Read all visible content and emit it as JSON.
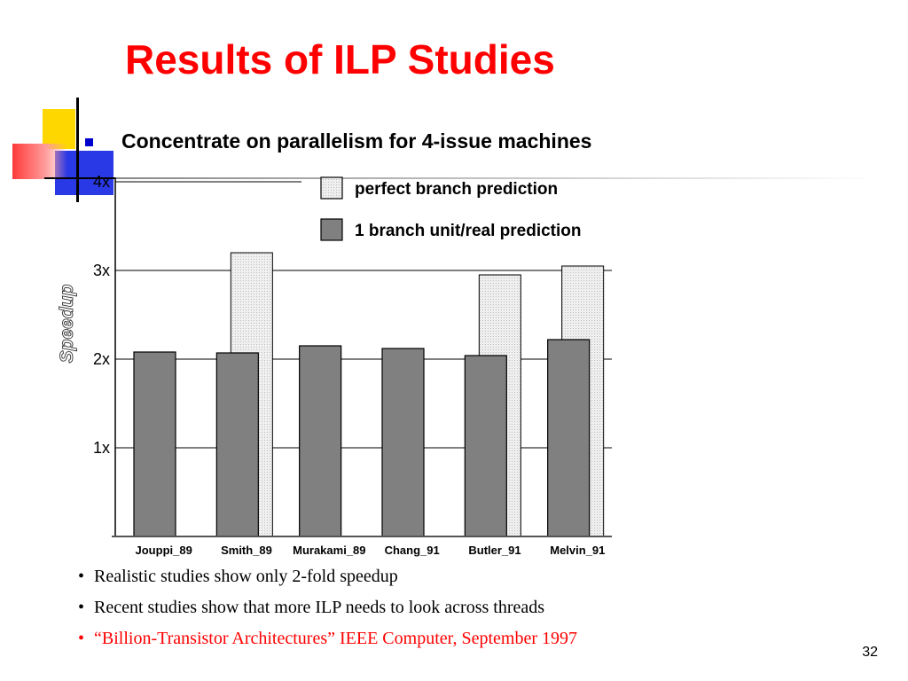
{
  "slide": {
    "title": "Results of ILP Studies",
    "subtitle": "Concentrate on parallelism for 4-issue machines",
    "page_number": "32",
    "notes": [
      "Realistic studies show only 2-fold speedup",
      "Recent studies show that more ILP needs to look across threads",
      "“Billion-Transistor Architectures” IEEE Computer, September 1997"
    ],
    "colors": {
      "title": "#ff0000",
      "bullet_square": "#0000cc",
      "bar_real": "#808080",
      "bar_perfect": "#ececec"
    }
  },
  "chart_data": {
    "type": "bar",
    "ylabel": "Speedup",
    "xlabel": "",
    "ylim": [
      0,
      4
    ],
    "yticks": [
      1,
      2,
      3,
      4
    ],
    "ytick_labels": [
      "1x",
      "2x",
      "3x",
      "4x"
    ],
    "categories": [
      "Jouppi_89",
      "Smith_89",
      "Murakami_89",
      "Chang_91",
      "Butler_91",
      "Melvin_91"
    ],
    "series": [
      {
        "name": "perfect branch prediction",
        "values": [
          null,
          3.2,
          null,
          null,
          2.95,
          3.05
        ]
      },
      {
        "name": "1 branch unit/real prediction",
        "values": [
          2.08,
          2.07,
          2.15,
          2.12,
          2.04,
          2.22
        ]
      }
    ],
    "legend_position": "top-right",
    "grid": true
  }
}
